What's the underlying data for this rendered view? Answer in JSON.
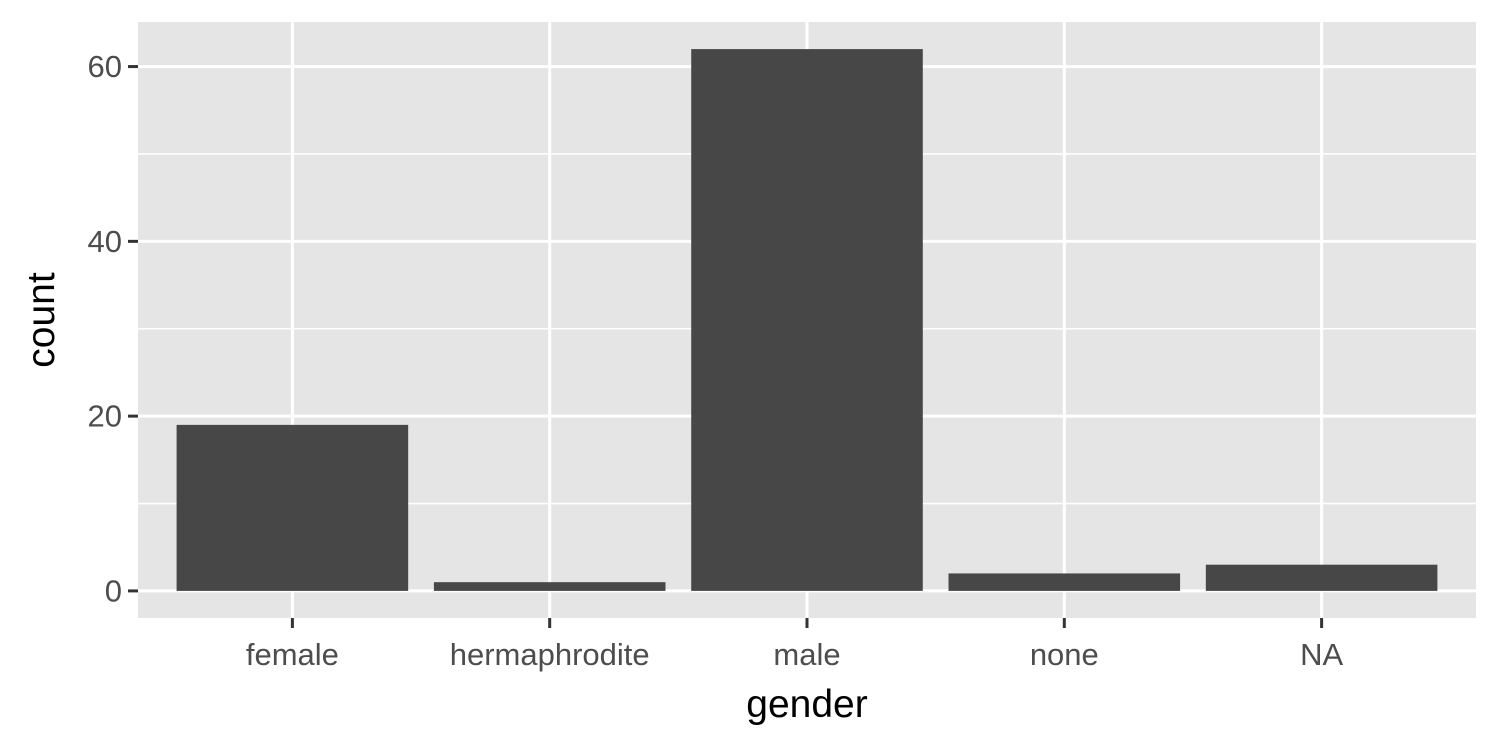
{
  "chart_data": {
    "type": "bar",
    "categories": [
      "female",
      "hermaphrodite",
      "male",
      "none",
      "NA"
    ],
    "values": [
      19,
      1,
      62,
      2,
      3
    ],
    "xlabel": "gender",
    "ylabel": "count",
    "ylim": [
      -3.1,
      65.1
    ],
    "y_ticks": [
      0,
      20,
      40,
      60
    ],
    "y_tick_labels": [
      "0",
      "20",
      "40",
      "60"
    ],
    "y_minor_ticks": [
      10,
      30,
      50
    ],
    "grid": true,
    "legend": "none",
    "colors": {
      "panel_background": "#e5e5e5",
      "gridline": "#ffffff",
      "bar_fill": "#474747",
      "tick_mark": "#333333",
      "tick_text": "#4d4d4d",
      "axis_title": "#000000"
    }
  }
}
